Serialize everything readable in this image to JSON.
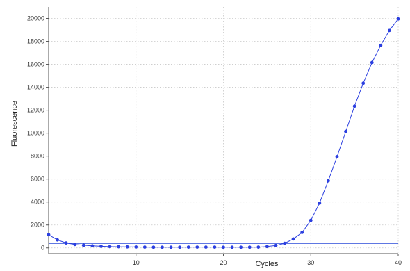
{
  "chart_data": {
    "type": "line",
    "title": "",
    "xlabel": "Cycles",
    "ylabel": "Fluorescence",
    "xlim": [
      0,
      40
    ],
    "ylim": [
      -500,
      21000
    ],
    "x_ticks": [
      10,
      20,
      30,
      40
    ],
    "y_ticks": [
      0,
      2000,
      4000,
      6000,
      8000,
      10000,
      12000,
      14000,
      16000,
      18000,
      20000
    ],
    "grid": true,
    "legend": "none",
    "threshold": 400,
    "colors": {
      "series": "#2b3fe0",
      "threshold": "#2a4ad8",
      "grid": "#c8c8c8",
      "axis": "#555555"
    },
    "series": [
      {
        "x": [
          0,
          1,
          2,
          3,
          4,
          5,
          6,
          7,
          8,
          9,
          10,
          11,
          12,
          13,
          14,
          15,
          16,
          17,
          18,
          19,
          20,
          21,
          22,
          23,
          24,
          25,
          26,
          27,
          28,
          29,
          30,
          31,
          32,
          33,
          34,
          35,
          36,
          37,
          38,
          39,
          40
        ],
        "values": [
          1150,
          700,
          430,
          300,
          230,
          180,
          140,
          110,
          100,
          90,
          80,
          70,
          60,
          60,
          60,
          60,
          70,
          70,
          70,
          70,
          60,
          60,
          60,
          60,
          70,
          120,
          210,
          400,
          780,
          1350,
          2400,
          3900,
          5850,
          7950,
          10150,
          12350,
          14350,
          16150,
          17650,
          18950,
          19950
        ]
      }
    ]
  }
}
